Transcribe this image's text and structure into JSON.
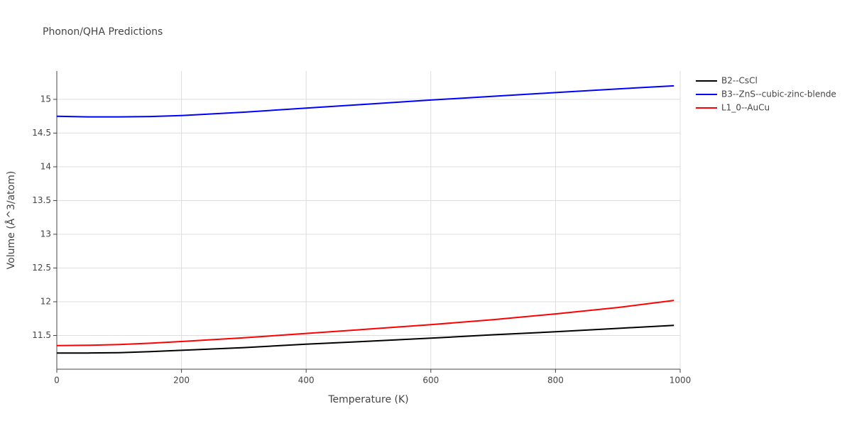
{
  "chart_data": {
    "type": "line",
    "title": "Phonon/QHA Predictions",
    "x_label": "Temperature (K)",
    "y_label": "Volume (Å^3/atom)",
    "x": [
      0,
      50,
      100,
      150,
      200,
      300,
      400,
      500,
      600,
      700,
      800,
      900,
      990
    ],
    "series": [
      {
        "name": "B2--CsCl",
        "color": "#000000",
        "values": [
          11.24,
          11.24,
          11.245,
          11.26,
          11.28,
          11.32,
          11.37,
          11.415,
          11.46,
          11.51,
          11.555,
          11.605,
          11.65
        ]
      },
      {
        "name": "B3--ZnS--cubic-zinc-blende",
        "color": "#0000ff",
        "values": [
          14.75,
          14.74,
          14.74,
          14.745,
          14.76,
          14.81,
          14.87,
          14.93,
          14.99,
          15.045,
          15.1,
          15.155,
          15.2
        ]
      },
      {
        "name": "L1_0--AuCu",
        "color": "#ff0000",
        "values": [
          11.35,
          11.355,
          11.365,
          11.385,
          11.41,
          11.465,
          11.53,
          11.595,
          11.66,
          11.735,
          11.82,
          11.915,
          12.02
        ]
      }
    ],
    "xlim": [
      0,
      1000
    ],
    "xticks": [
      0,
      200,
      400,
      600,
      800,
      1000
    ],
    "ylim": [
      11.0,
      15.42
    ],
    "yticks": [
      11.5,
      12,
      12.5,
      13,
      13.5,
      14,
      14.5,
      15
    ],
    "grid": true,
    "legend": "right"
  }
}
